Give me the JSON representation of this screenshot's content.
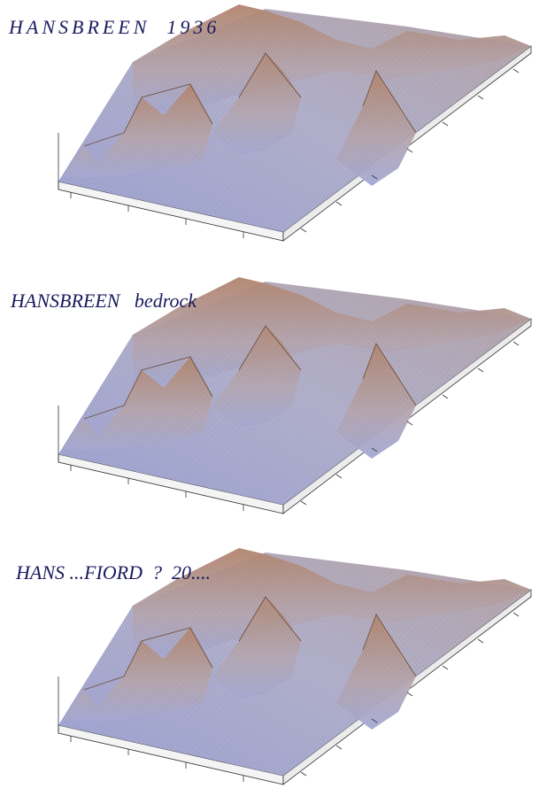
{
  "panels": [
    {
      "title": "HANSBREEN  1936"
    },
    {
      "title": "HANSBREEN   bedrock"
    },
    {
      "title": "HANS ...FIORD  ?  20...."
    }
  ]
}
